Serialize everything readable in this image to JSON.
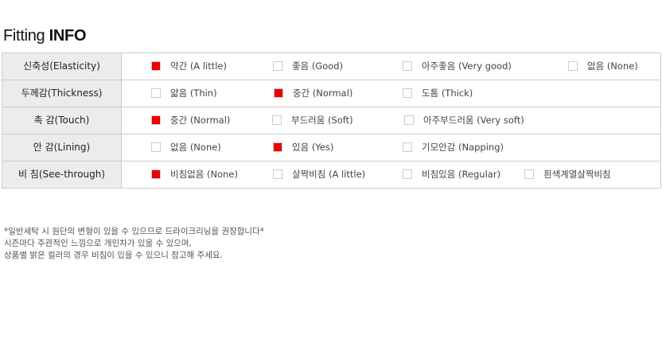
{
  "title": {
    "light": "Fitting ",
    "bold": "INFO"
  },
  "colors": {
    "checked": "#ee0000"
  },
  "rows": [
    {
      "label": "신축성(Elasticity)",
      "options": [
        {
          "label": "약간 (A little)",
          "checked": true
        },
        {
          "label": "좋음 (Good)",
          "checked": false
        },
        {
          "label": "아주좋음 (Very good)",
          "checked": false
        },
        {
          "label": "없음 (None)",
          "checked": false
        }
      ]
    },
    {
      "label": "두께감(Thickness)",
      "options": [
        {
          "label": "얇음 (Thin)",
          "checked": false
        },
        {
          "label": "중간 (Normal)",
          "checked": true
        },
        {
          "label": "도톰 (Thick)",
          "checked": false
        }
      ]
    },
    {
      "label": "촉 감(Touch)",
      "options": [
        {
          "label": "중간 (Normal)",
          "checked": true
        },
        {
          "label": "부드러움 (Soft)",
          "checked": false
        },
        {
          "label": "아주부드러움 (Very soft)",
          "checked": false
        }
      ]
    },
    {
      "label": "안 감(Lining)",
      "options": [
        {
          "label": "없음 (None)",
          "checked": false
        },
        {
          "label": "있음 (Yes)",
          "checked": true
        },
        {
          "label": "기모안감 (Napping)",
          "checked": false
        }
      ]
    },
    {
      "label": "비 침(See-through)",
      "options": [
        {
          "label": "비침없음 (None)",
          "checked": true
        },
        {
          "label": "살짝비침 (A little)",
          "checked": false
        },
        {
          "label": "비침있음 (Regular)",
          "checked": false
        },
        {
          "label": "흰색계열살짝비침",
          "checked": false
        }
      ]
    }
  ],
  "notes": [
    "*일반세탁 시 원단의 변형이 있을 수 있으므로 드라이크리닝을 권장합니다*",
    "시즌마다 주관적인 느낌으로 개인차가 있을 수 있으며,",
    "상품별 밝은 컬러의 경우 비침이 있을 수 있으니 참고해 주세요."
  ]
}
